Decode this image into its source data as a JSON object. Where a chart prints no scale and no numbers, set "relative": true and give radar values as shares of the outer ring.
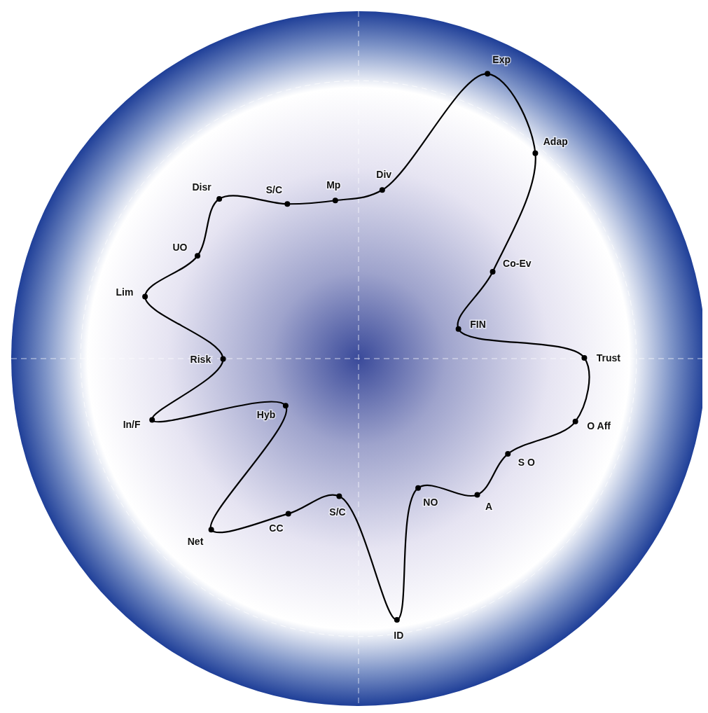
{
  "chart_data": {
    "type": "radar",
    "relative": true,
    "grid": true,
    "marker": "circle",
    "line_style": "solid",
    "categories": [
      "Div",
      "Exp",
      "Adap",
      "Co-Ev",
      "FIN",
      "Trust",
      "O Aff",
      "S O",
      "A",
      "NO",
      "ID",
      "S/C",
      "CC",
      "Net",
      "Hyb",
      "In/F",
      "Risk",
      "Lim",
      "UO",
      "Disr",
      "S/C",
      "Mp"
    ],
    "series": [
      {
        "color": "#000000",
        "values": [
          0.49,
          0.9,
          0.78,
          0.46,
          0.3,
          0.65,
          0.65,
          0.51,
          0.52,
          0.41,
          0.76,
          0.4,
          0.49,
          0.65,
          0.25,
          0.62,
          0.39,
          0.64,
          0.55,
          0.61,
          0.49,
          0.46
        ]
      }
    ]
  }
}
